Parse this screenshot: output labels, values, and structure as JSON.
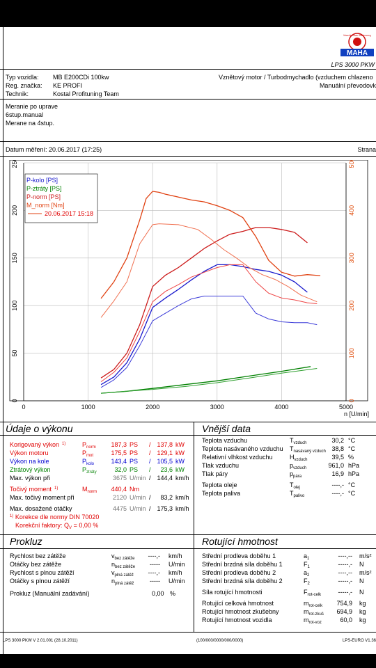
{
  "header": {
    "logo_title": "LPS 3000 PKW",
    "logo_wordmark": "MAHA",
    "logo_ring_text": "Maschinenbau Haldenwang",
    "vehicle_type_label": "Typ vozidla:",
    "vehicle_type": "MB E200CDi 100kw",
    "reg_label": "Reg. značka:",
    "reg": "KE PROFI",
    "tech_label": "Technik:",
    "tech": "Kostal Profituning Team",
    "engine": "Vznětový motor / Turbodmychadlo (vzduchem chlazeno",
    "gearbox": "Manuální převodovk",
    "notes": [
      "Meranie po uprave",
      "6stup.manual",
      "Merane na 4stup."
    ],
    "date_label": "Datum měření: 20.06.2017 (17:25)",
    "page_label": "Strana"
  },
  "chart_data": {
    "type": "line",
    "x_unit": "n [U/min]",
    "xlim": [
      0,
      5000
    ],
    "xticks": [
      0,
      1000,
      2000,
      3000,
      4000,
      5000
    ],
    "ylim_left": [
      0,
      250
    ],
    "yticks_left": [
      0,
      50,
      100,
      150,
      200,
      250
    ],
    "ylim_right": [
      0,
      500
    ],
    "yticks_right": [
      0,
      100,
      200,
      300,
      400,
      500
    ],
    "legend_placement": "top-left",
    "legend": [
      "P-kolo [PS]",
      "P-ztráty [PS]",
      "P-norm [PS]",
      "M_norm [Nm]",
      "20.06.2017 15:18"
    ],
    "series": [
      {
        "name": "P-kolo",
        "axis": "left",
        "color": "#1a1acc",
        "x": [
          1200,
          1400,
          1600,
          1800,
          2000,
          2200,
          2400,
          2600,
          2800,
          3000,
          3200,
          3400,
          3600,
          3800,
          4000,
          4200,
          4400
        ],
        "y": [
          17,
          25,
          40,
          65,
          98,
          108,
          117,
          127,
          136,
          143,
          143,
          141,
          138,
          136,
          132,
          125,
          114
        ]
      },
      {
        "name": "P-ztráty",
        "axis": "left",
        "color": "#008000",
        "x": [
          1200,
          1600,
          2000,
          2500,
          3000,
          3500,
          4000,
          4450
        ],
        "y": [
          8,
          10,
          13,
          17,
          21,
          26,
          31,
          36
        ]
      },
      {
        "name": "P-norm",
        "axis": "left",
        "color": "#cc1a1a",
        "x": [
          1200,
          1400,
          1600,
          1800,
          2000,
          2200,
          2400,
          2600,
          2800,
          3000,
          3200,
          3400,
          3600,
          3800,
          4000,
          4200,
          4400
        ],
        "y": [
          24,
          33,
          50,
          80,
          120,
          132,
          140,
          150,
          160,
          168,
          175,
          178,
          182,
          182,
          180,
          177,
          166
        ]
      },
      {
        "name": "M_norm",
        "axis": "right",
        "color": "#e04010",
        "x": [
          1200,
          1400,
          1600,
          1800,
          1900,
          2000,
          2100,
          2200,
          2400,
          2600,
          2800,
          3000,
          3200,
          3400,
          3600,
          3800,
          4000,
          4200,
          4400,
          4600
        ],
        "y": [
          215,
          250,
          300,
          380,
          425,
          440,
          438,
          434,
          428,
          422,
          418,
          410,
          400,
          385,
          345,
          295,
          270,
          262,
          265,
          263
        ]
      },
      {
        "name": "P-kolo (20.06.2017 15:18)",
        "axis": "left",
        "color": "#3a3ad8",
        "x": [
          1200,
          1400,
          1600,
          1800,
          2000,
          2200,
          2400,
          2600,
          2800,
          3000,
          3200,
          3400,
          3600,
          3800,
          4000,
          4200,
          4400,
          4550
        ],
        "y": [
          14,
          22,
          35,
          58,
          84,
          92,
          100,
          107,
          110,
          110,
          110,
          110,
          92,
          86,
          83,
          82,
          82,
          80
        ]
      },
      {
        "name": "P-ztráty (20.06.2017 15:18)",
        "axis": "left",
        "color": "#30a030",
        "x": [
          1200,
          1600,
          2000,
          2500,
          3000,
          3500,
          4000,
          4550
        ],
        "y": [
          8,
          10,
          12,
          15,
          19,
          24,
          29,
          34
        ]
      },
      {
        "name": "P-norm (20.06.2017 15:18)",
        "axis": "left",
        "color": "#ee4444",
        "x": [
          1200,
          1400,
          1600,
          1800,
          2000,
          2200,
          2400,
          2600,
          2800,
          3000,
          3200,
          3400,
          3600,
          3800,
          4000,
          4200,
          4400,
          4550
        ],
        "y": [
          20,
          30,
          45,
          73,
          104,
          115,
          122,
          130,
          135,
          140,
          143,
          143,
          125,
          113,
          108,
          106,
          103,
          102
        ]
      },
      {
        "name": "M_norm (20.06.2017 15:18)",
        "axis": "right",
        "color": "#f07050",
        "x": [
          1200,
          1400,
          1600,
          1800,
          2000,
          2100,
          2400,
          2700,
          2900,
          3100,
          3300,
          3500,
          3700,
          3900,
          4100,
          4300,
          4550
        ],
        "y": [
          175,
          210,
          250,
          330,
          370,
          372,
          370,
          360,
          340,
          318,
          300,
          280,
          265,
          255,
          240,
          222,
          208
        ]
      }
    ]
  },
  "output": {
    "title": "Údaje o výkonu",
    "rows": [
      {
        "label": "Korigovaný výkon",
        "note": "1)",
        "sym": "P",
        "sub": "norm",
        "v1": "187,3",
        "u1": "PS",
        "sep": "/",
        "v2": "137,8",
        "u2": "kW",
        "color": "red"
      },
      {
        "label": "Výkon motoru",
        "note": "",
        "sym": "P",
        "sub": "mot",
        "v1": "175,5",
        "u1": "PS",
        "sep": "/",
        "v2": "129,1",
        "u2": "kW",
        "color": "red"
      },
      {
        "label": "Výkon na kole",
        "note": "",
        "sym": "P",
        "sub": "kolo",
        "v1": "143,4",
        "u1": "PS",
        "sep": "/",
        "v2": "105,5",
        "u2": "kW",
        "color": "blue"
      },
      {
        "label": "Ztrátový výkon",
        "note": "",
        "sym": "P",
        "sub": "ztráty",
        "v1": "32,0",
        "u1": "PS",
        "sep": "/",
        "v2": "23,6",
        "u2": "kW",
        "color": "green"
      },
      {
        "label": "Max. výkon při",
        "note": "",
        "sym": "",
        "sub": "",
        "v1": "3675",
        "u1": "U/min",
        "sep": "/",
        "v2": "144,4",
        "u2": "km/h",
        "color": "black"
      },
      {
        "label": "Točivý moment",
        "note": "1)",
        "sym": "M",
        "sub": "norm",
        "v1": "440,4",
        "u1": "Nm",
        "sep": "",
        "v2": "",
        "u2": "",
        "color": "red"
      },
      {
        "label": "Max. točivý moment při",
        "note": "",
        "sym": "",
        "sub": "",
        "v1": "2120",
        "u1": "U/min",
        "sep": "/",
        "v2": "83,2",
        "u2": "km/h",
        "color": "black"
      },
      {
        "label": "Max. dosažené otáčky",
        "note": "",
        "sym": "",
        "sub": "",
        "v1": "4475",
        "u1": "U/min",
        "sep": "/",
        "v2": "175,3",
        "u2": "km/h",
        "color": "black"
      }
    ],
    "note1": "Korekce dle normy DIN 70020",
    "note1_prefix": "1)",
    "note2": "Korekční faktory: Q",
    "note2_sub": "V",
    "note2_value": "=    0,00 %"
  },
  "external": {
    "title": "Vnější data",
    "rows": [
      {
        "label": "Teplota vzduchu",
        "sym": "T",
        "sub": "vzduch",
        "value": "30,2",
        "unit": "°C"
      },
      {
        "label": "Teplota nasávaného vzduchu",
        "sym": "T",
        "sub": "nasávaný vzduch",
        "value": "38,8",
        "unit": "°C"
      },
      {
        "label": "Relativní vlhkost vzduchu",
        "sym": "H",
        "sub": "vzduch",
        "value": "39,5",
        "unit": "%"
      },
      {
        "label": "Tlak vzduchu",
        "sym": "p",
        "sub": "vzduch",
        "value": "961,0",
        "unit": "hPa"
      },
      {
        "label": "Tlak páry",
        "sym": "p",
        "sub": "pára",
        "value": "16,9",
        "unit": "hPa"
      },
      {
        "label": "Teplota oleje",
        "sym": "T",
        "sub": "olej",
        "value": "----,-",
        "unit": "°C"
      },
      {
        "label": "Teplota paliva",
        "sym": "T",
        "sub": "palivo",
        "value": "----,-",
        "unit": "°C"
      }
    ]
  },
  "coast": {
    "title": "Prokluz",
    "rows": [
      {
        "label": "Rychlost bez zátěže",
        "sym": "v",
        "sub": "bez zátěže",
        "value": "----,-",
        "unit": "km/h"
      },
      {
        "label": "Otáčky bez zátěže",
        "sym": "n",
        "sub": "bez zátěže",
        "value": "-----",
        "unit": "U/min"
      },
      {
        "label": "Rychlost s plnou zátěží",
        "sym": "v",
        "sub": "plná zátěž",
        "value": "----,-",
        "unit": "km/h"
      },
      {
        "label": "Otáčky s plnou zátěží",
        "sym": "n",
        "sub": "plná zátěž",
        "value": "-----",
        "unit": "U/min"
      }
    ],
    "manual_label": "Prokluz (Manuální zadávání)",
    "manual_value": "0,00",
    "manual_unit": "%"
  },
  "rotating": {
    "title": "Rotující hmotnost",
    "rows": [
      {
        "label": "Střední prodleva doběhu 1",
        "sym": "a",
        "sub": "1",
        "value": "----,--",
        "unit": "m/s²"
      },
      {
        "label": "Střední brzdná síla doběhu 1",
        "sym": "F",
        "sub": "1",
        "value": "-----,-",
        "unit": "N"
      },
      {
        "label": "Střední prodleva doběhu 2",
        "sym": "a",
        "sub": "2",
        "value": "----,--",
        "unit": "m/s²"
      },
      {
        "label": "Střední brzdná síla doběhu 2",
        "sym": "F",
        "sub": "2",
        "value": "-----,-",
        "unit": "N"
      },
      {
        "label": "Síla rotující hmotnosti",
        "sym": "F",
        "sub": "rot-celk",
        "value": "-----,-",
        "unit": "N"
      },
      {
        "label": "Rotující celková hmotnost",
        "sym": "m",
        "sub": "rot-celk",
        "value": "754,9",
        "unit": "kg"
      },
      {
        "label": "Rotující hmotnost zkušebny",
        "sym": "m",
        "sub": "rot-zkuš",
        "value": "694,9",
        "unit": "kg"
      },
      {
        "label": "Rotující hmotnost vozidla",
        "sym": "m",
        "sub": "rot-voz",
        "value": "60,0",
        "unit": "kg"
      }
    ]
  },
  "footer": {
    "left": "LPS 3000 PKW V 2.01.001 (28.10.2011)",
    "center": "(100/000/0000/000/0000)",
    "right": "LPS-EURO V1.36"
  }
}
